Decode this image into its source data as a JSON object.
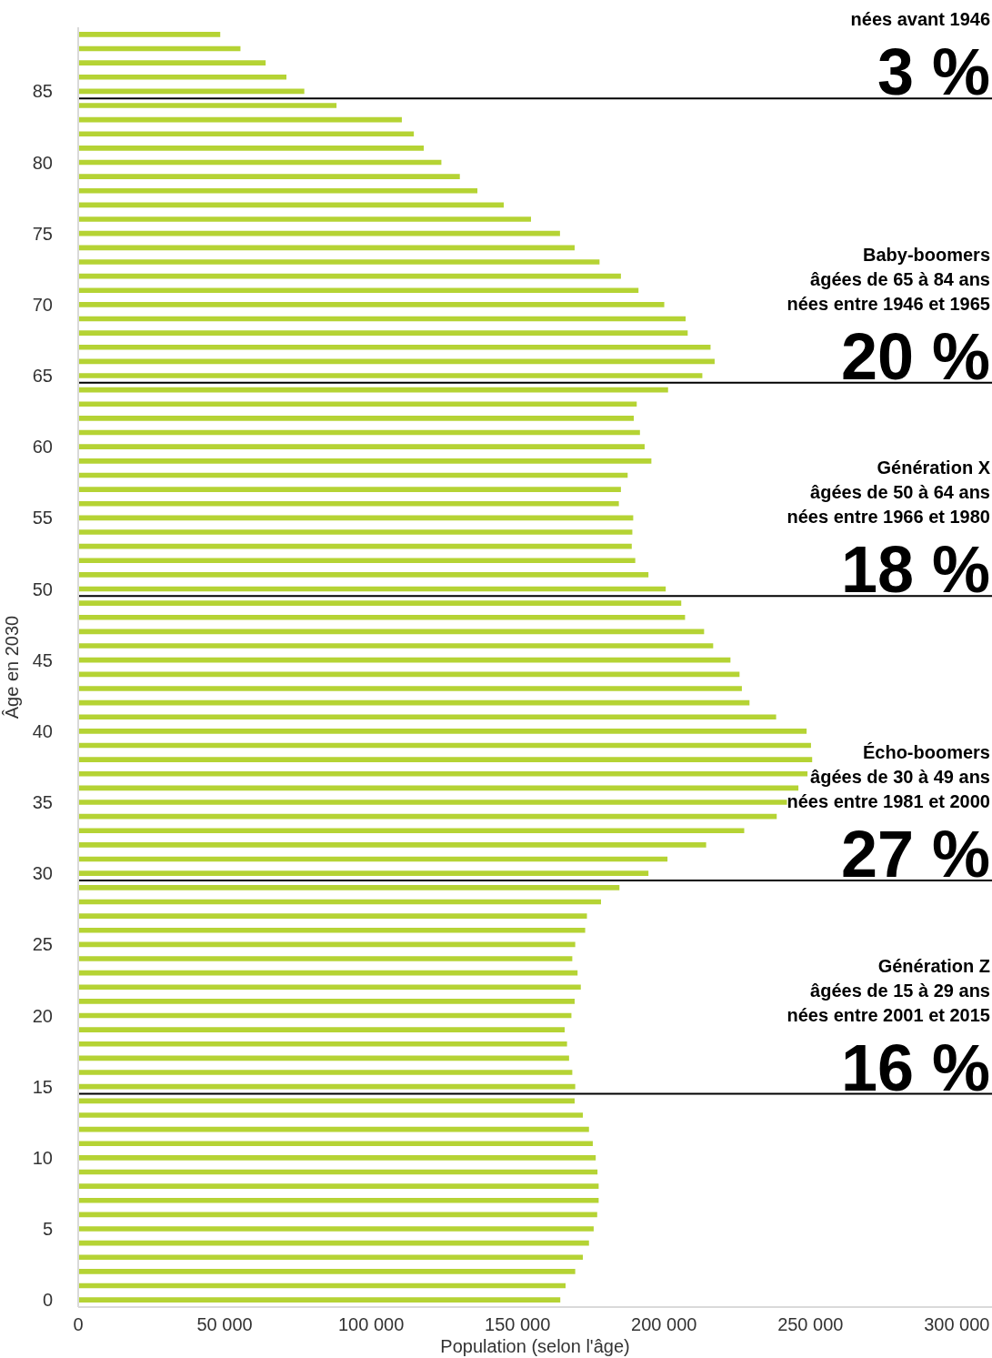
{
  "chart_data": {
    "type": "bar",
    "orientation": "horizontal",
    "xlabel": "Population (selon l'âge)",
    "ylabel": "Âge en 2030",
    "x": [
      0,
      1,
      2,
      3,
      4,
      5,
      6,
      7,
      8,
      9,
      10,
      11,
      12,
      13,
      14,
      15,
      16,
      17,
      18,
      19,
      20,
      21,
      22,
      23,
      24,
      25,
      26,
      27,
      28,
      29,
      30,
      31,
      32,
      33,
      34,
      35,
      36,
      37,
      38,
      39,
      40,
      41,
      42,
      43,
      44,
      45,
      46,
      47,
      48,
      49,
      50,
      51,
      52,
      53,
      54,
      55,
      56,
      57,
      58,
      59,
      60,
      61,
      62,
      63,
      64,
      65,
      66,
      67,
      68,
      69,
      70,
      71,
      72,
      73,
      74,
      75,
      76,
      77,
      78,
      79,
      80,
      81,
      82,
      83,
      84,
      85,
      86,
      87,
      88,
      89
    ],
    "values": [
      164600,
      166400,
      169700,
      172300,
      174400,
      176000,
      177200,
      177700,
      177700,
      177300,
      176700,
      175700,
      174400,
      172300,
      169500,
      169700,
      168700,
      167600,
      166900,
      166100,
      168400,
      169500,
      171600,
      170500,
      168700,
      169700,
      173100,
      173700,
      178500,
      184800,
      194700,
      201200,
      214400,
      227400,
      238500,
      242000,
      245900,
      249000,
      250600,
      250200,
      248700,
      238300,
      229200,
      226600,
      225800,
      222700,
      216800,
      213700,
      207200,
      205900,
      200600,
      194700,
      190200,
      189000,
      189200,
      189500,
      184600,
      185300,
      187600,
      195700,
      193400,
      191800,
      189700,
      190700,
      201400,
      213100,
      217300,
      215900,
      208100,
      207400,
      200100,
      191300,
      185300,
      178000,
      169500,
      164500,
      154600,
      145300,
      136300,
      130300,
      124000,
      118000,
      114600,
      110500,
      88200,
      77200,
      71100,
      64000,
      55400,
      48500
    ],
    "color": "#b5d334",
    "xlim": [
      0,
      312000
    ],
    "xticks": [
      0,
      {
        "value": 50000,
        "label": "50 000"
      },
      {
        "value": 100000,
        "label": "100 000"
      },
      {
        "value": 150000,
        "label": "150 000"
      },
      {
        "value": 200000,
        "label": "200 000"
      },
      {
        "value": 250000,
        "label": "250 000"
      },
      {
        "value": 300000,
        "label": "300 000"
      }
    ],
    "ylim": [
      -0.5,
      89.5
    ],
    "yticks": [
      0,
      5,
      10,
      15,
      20,
      25,
      30,
      35,
      40,
      45,
      50,
      55,
      60,
      65,
      70,
      75,
      80,
      85
    ],
    "ref_lines": [
      {
        "axis": "y",
        "value": 84.5,
        "label": "nées avant 1946\n3 %",
        "color": "#000000"
      },
      {
        "axis": "y",
        "value": 64.5,
        "label": "Baby-boomers\nâgées de 65 à 84 ans\nnées entre 1946 et 1965\n20 %",
        "color": "#000000"
      },
      {
        "axis": "y",
        "value": 49.5,
        "label": "Génération X\nâgées de 50 à 64 ans\nnées entre 1966 et 1980\n18 %",
        "color": "#000000"
      },
      {
        "axis": "y",
        "value": 29.5,
        "label": "Écho-boomers\nâgées de 30 à 49 ans\nnées entre 1981 et 2000\n27 %",
        "color": "#000000"
      },
      {
        "axis": "y",
        "value": 14.5,
        "label": "Génération Z\nâgées de 15 à 29 ans\nnées entre 2001 et 2015\n16 %",
        "color": "#000000"
      }
    ]
  }
}
